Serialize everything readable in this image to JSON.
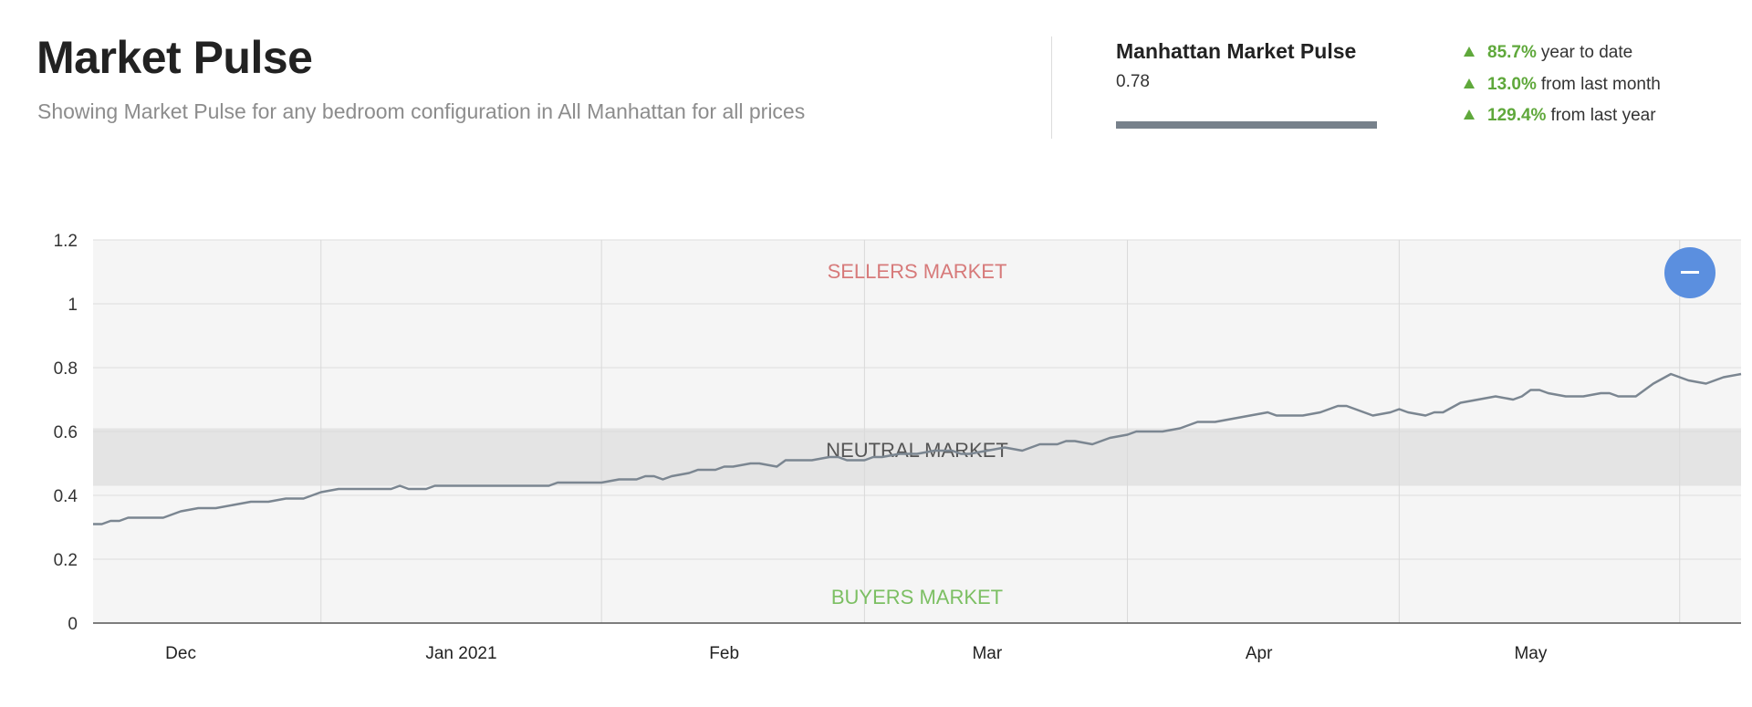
{
  "header": {
    "title": "Market Pulse",
    "subtitle": "Showing Market Pulse for any bedroom configuration in All Manhattan for all prices"
  },
  "pulse": {
    "title": "Manhattan Market Pulse",
    "value": "0.78"
  },
  "stats": [
    {
      "pct": "85.7%",
      "label": "year to date"
    },
    {
      "pct": "13.0%",
      "label": "from last month"
    },
    {
      "pct": "129.4%",
      "label": "from last year"
    }
  ],
  "colors": {
    "line": "#7b8691",
    "positive": "#5fa83b",
    "sellers": "#d77a7a",
    "neutral": "#555555",
    "buyers": "#7cbf63",
    "button": "#5b8fdf",
    "plot_bg": "#f5f5f5",
    "band": "#e4e4e4"
  },
  "chart_data": {
    "type": "line",
    "title": "Market Pulse",
    "xlabel": "",
    "ylabel": "",
    "ylim": [
      0,
      1.2
    ],
    "yticks": [
      "0",
      "0.2",
      "0.4",
      "0.6",
      "0.8",
      "1",
      "1.2"
    ],
    "x_tick_labels": [
      "Dec",
      "Jan 2021",
      "Feb",
      "Mar",
      "Apr",
      "May"
    ],
    "x_tick_label_days": [
      10,
      42,
      72,
      102,
      133,
      164
    ],
    "x_gridline_days": [
      26,
      58,
      88,
      118,
      149,
      181
    ],
    "neutral_band": [
      0.43,
      0.61
    ],
    "zones": {
      "sellers": "SELLERS MARKET",
      "neutral": "NEUTRAL MARKET",
      "buyers": "BUYERS MARKET"
    },
    "x_days_range": [
      0,
      188
    ],
    "series": [
      {
        "name": "Manhattan Market Pulse",
        "x": [
          0,
          1,
          2,
          3,
          4,
          6,
          8,
          10,
          12,
          14,
          16,
          18,
          20,
          22,
          24,
          26,
          28,
          32,
          34,
          35,
          36,
          38,
          39,
          40,
          44,
          48,
          52,
          53,
          56,
          58,
          60,
          62,
          63,
          64,
          65,
          66,
          68,
          69,
          71,
          72,
          73,
          75,
          76,
          78,
          79,
          80,
          82,
          84,
          85,
          86,
          88,
          89,
          90,
          92,
          94,
          96,
          98,
          99,
          100,
          102,
          104,
          106,
          108,
          110,
          111,
          112,
          114,
          116,
          118,
          119,
          120,
          122,
          124,
          126,
          128,
          130,
          132,
          134,
          135,
          136,
          138,
          140,
          142,
          143,
          144,
          146,
          148,
          149,
          150,
          152,
          153,
          154,
          156,
          158,
          160,
          162,
          163,
          164,
          165,
          166,
          168,
          170,
          172,
          173,
          174,
          176,
          178,
          180,
          182,
          184,
          186,
          188
        ],
        "y": [
          0.31,
          0.31,
          0.32,
          0.32,
          0.33,
          0.33,
          0.33,
          0.35,
          0.36,
          0.36,
          0.37,
          0.38,
          0.38,
          0.39,
          0.39,
          0.41,
          0.42,
          0.42,
          0.42,
          0.43,
          0.42,
          0.42,
          0.43,
          0.43,
          0.43,
          0.43,
          0.43,
          0.44,
          0.44,
          0.44,
          0.45,
          0.45,
          0.46,
          0.46,
          0.45,
          0.46,
          0.47,
          0.48,
          0.48,
          0.49,
          0.49,
          0.5,
          0.5,
          0.49,
          0.51,
          0.51,
          0.51,
          0.52,
          0.52,
          0.51,
          0.51,
          0.52,
          0.52,
          0.53,
          0.53,
          0.54,
          0.54,
          0.53,
          0.53,
          0.54,
          0.55,
          0.54,
          0.56,
          0.56,
          0.57,
          0.57,
          0.56,
          0.58,
          0.59,
          0.6,
          0.6,
          0.6,
          0.61,
          0.63,
          0.63,
          0.64,
          0.65,
          0.66,
          0.65,
          0.65,
          0.65,
          0.66,
          0.68,
          0.68,
          0.67,
          0.65,
          0.66,
          0.67,
          0.66,
          0.65,
          0.66,
          0.66,
          0.69,
          0.7,
          0.71,
          0.7,
          0.71,
          0.73,
          0.73,
          0.72,
          0.71,
          0.71,
          0.72,
          0.72,
          0.71,
          0.71,
          0.75,
          0.78,
          0.76,
          0.75,
          0.77,
          0.78
        ]
      }
    ]
  }
}
